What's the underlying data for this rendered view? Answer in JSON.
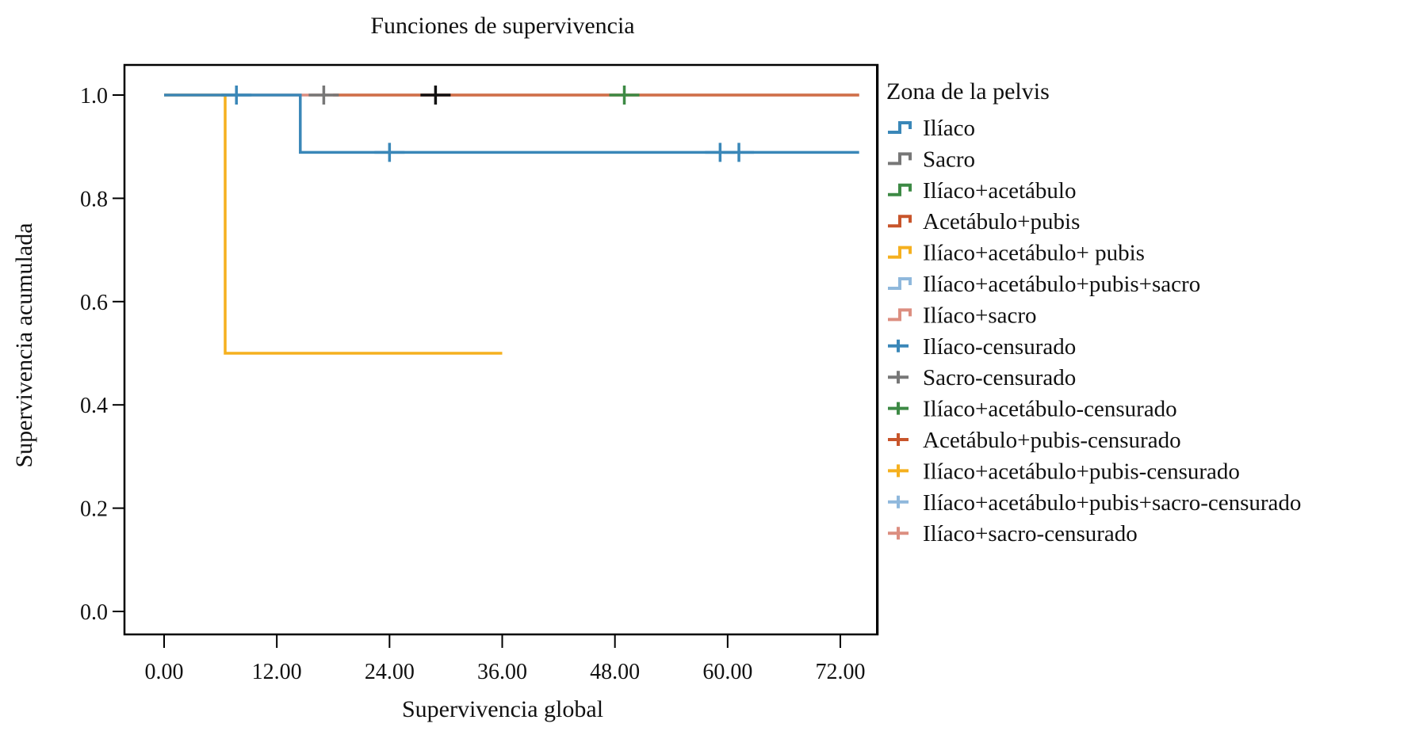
{
  "chart_data": {
    "type": "line",
    "title": "Funciones de supervivencia",
    "xlabel": "Supervivencia global",
    "ylabel": "Supervivencia acumulada",
    "xlim": [
      -4,
      78
    ],
    "ylim": [
      -0.05,
      1.06
    ],
    "xticks": [
      0,
      12,
      24,
      36,
      48,
      60,
      72
    ],
    "xtick_labels": [
      "0.00",
      "12.00",
      "24.00",
      "36.00",
      "48.00",
      "60.00",
      "72.00"
    ],
    "yticks": [
      0,
      0.2,
      0.4,
      0.6,
      0.8,
      1.0
    ],
    "ytick_labels": [
      "0.0",
      "0.2",
      "0.4",
      "0.6",
      "0.8",
      "1.0"
    ],
    "grid": false,
    "legend_title": "Zona de la pelvis",
    "legend_position": "right",
    "series": [
      {
        "name": "Ilíaco+sacro",
        "color": "#dc8e80",
        "steps": [
          [
            0,
            1.0
          ],
          [
            74,
            1.0
          ]
        ]
      },
      {
        "name": "Acetábulo+pubis",
        "color": "#d0704a",
        "steps": [
          [
            18,
            1.0
          ],
          [
            74,
            1.0
          ]
        ]
      },
      {
        "name": "Ilíaco+acetábulo+ pubis",
        "color": "#f5b01f",
        "steps": [
          [
            0,
            1.0
          ],
          [
            6.5,
            0.5
          ],
          [
            36,
            0.5
          ]
        ]
      },
      {
        "name": "Ilíaco",
        "color": "#3a87b8",
        "steps": [
          [
            0,
            1.0
          ],
          [
            14.5,
            0.889
          ],
          [
            74,
            0.889
          ]
        ]
      }
    ],
    "censored": [
      {
        "series": "Ilíaco",
        "color": "#3a87b8",
        "points": [
          [
            7.7,
            1.0
          ],
          [
            24,
            0.889
          ],
          [
            59.2,
            0.889
          ],
          [
            61.2,
            0.889
          ]
        ]
      },
      {
        "series": "Sacro",
        "color": "#777777",
        "points": [
          [
            17,
            1.0
          ]
        ]
      },
      {
        "series": "unlabeled",
        "color": "#111111",
        "points": [
          [
            28.9,
            1.0
          ]
        ]
      },
      {
        "series": "Ilíaco+acetábulo",
        "color": "#3d8a45",
        "points": [
          [
            49,
            1.0
          ]
        ]
      }
    ],
    "legend": [
      {
        "label": "Ilíaco",
        "kind": "step",
        "color": "#3a87b8"
      },
      {
        "label": "Sacro",
        "kind": "step",
        "color": "#777777"
      },
      {
        "label": "Ilíaco+acetábulo",
        "kind": "step",
        "color": "#3d8a45"
      },
      {
        "label": "Acetábulo+pubis",
        "kind": "step",
        "color": "#c8552b"
      },
      {
        "label": "Ilíaco+acetábulo+ pubis",
        "kind": "step",
        "color": "#f5b01f"
      },
      {
        "label": "Ilíaco+acetábulo+pubis+sacro",
        "kind": "step",
        "color": "#8fb8dc"
      },
      {
        "label": "Ilíaco+sacro",
        "kind": "step",
        "color": "#dc8e80"
      },
      {
        "label": "Ilíaco-censurado",
        "kind": "plus",
        "color": "#3a87b8"
      },
      {
        "label": "Sacro-censurado",
        "kind": "plus",
        "color": "#777777"
      },
      {
        "label": "Ilíaco+acetábulo-censurado",
        "kind": "plus",
        "color": "#3d8a45"
      },
      {
        "label": "Acetábulo+pubis-censurado",
        "kind": "plus",
        "color": "#c8552b"
      },
      {
        "label": "Ilíaco+acetábulo+pubis-censurado",
        "kind": "plus",
        "color": "#f5b01f"
      },
      {
        "label": "Ilíaco+acetábulo+pubis+sacro-censurado",
        "kind": "plus",
        "color": "#8fb8dc"
      },
      {
        "label": "Ilíaco+sacro-censurado",
        "kind": "plus",
        "color": "#dc8e80"
      }
    ]
  }
}
